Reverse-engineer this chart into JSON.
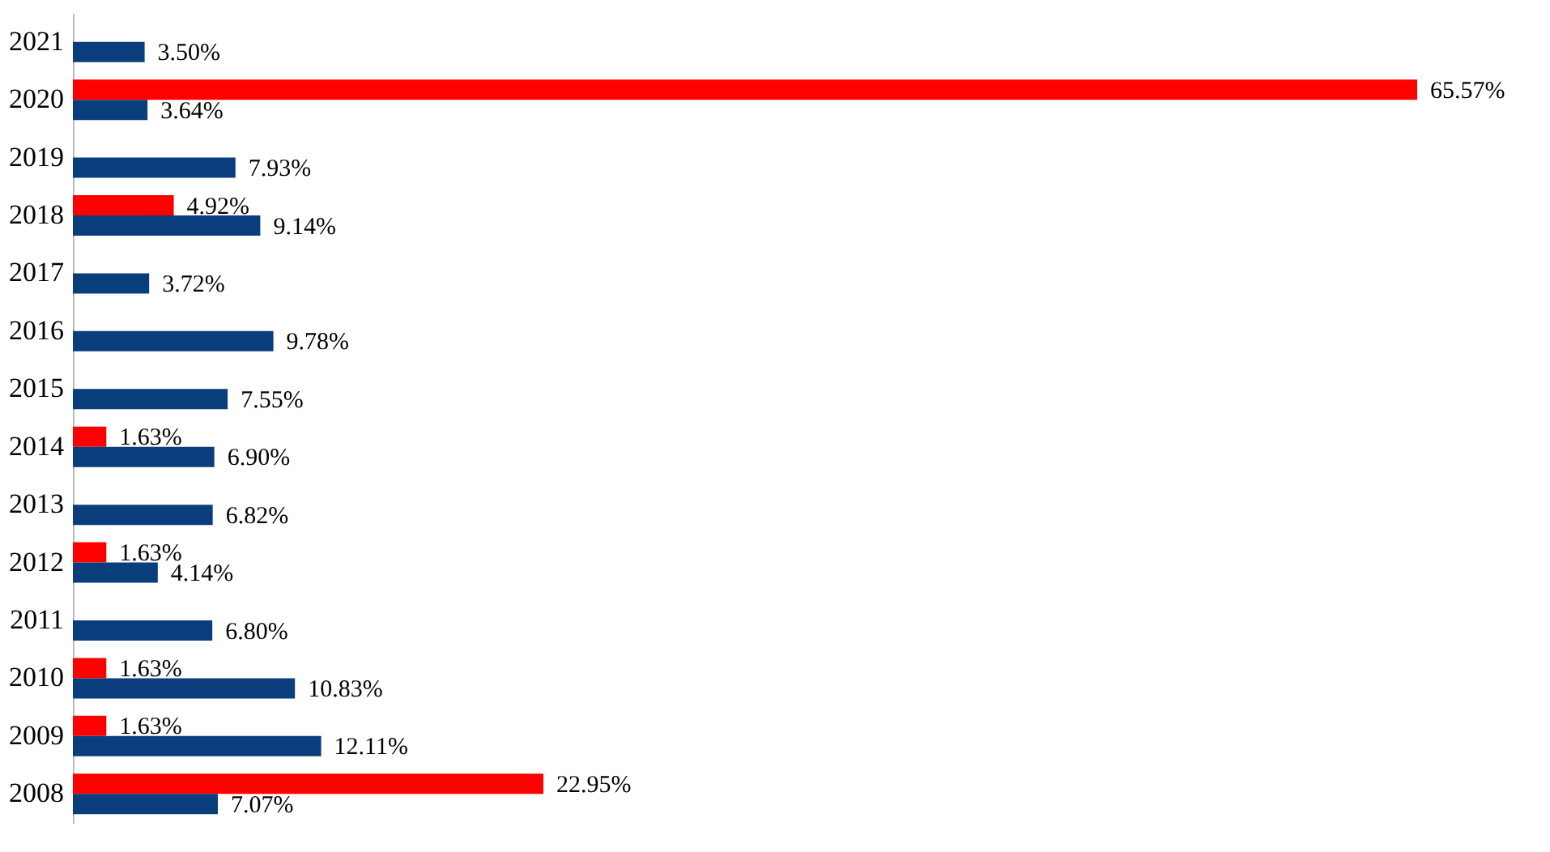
{
  "chart_data": {
    "type": "bar",
    "orientation": "horizontal",
    "categories": [
      "2021",
      "2020",
      "2019",
      "2018",
      "2017",
      "2016",
      "2015",
      "2014",
      "2013",
      "2012",
      "2011",
      "2010",
      "2009",
      "2008"
    ],
    "series": [
      {
        "color": "#ff0000",
        "values": [
          null,
          65.57,
          null,
          4.92,
          null,
          null,
          null,
          1.63,
          null,
          1.63,
          null,
          1.63,
          1.63,
          22.95
        ],
        "value_labels": [
          null,
          "65.57%",
          null,
          "4.92%",
          null,
          null,
          null,
          "1.63%",
          null,
          "1.63%",
          null,
          "1.63%",
          "1.63%",
          "22.95%"
        ]
      },
      {
        "color": "#0a3d7c",
        "values": [
          3.5,
          3.64,
          7.93,
          9.14,
          3.72,
          9.78,
          7.55,
          6.9,
          6.82,
          4.14,
          6.8,
          10.83,
          12.11,
          7.07
        ],
        "value_labels": [
          "3.50%",
          "3.64%",
          "7.93%",
          "9.14%",
          "3.72%",
          "9.78%",
          "7.55%",
          "6.90%",
          "6.82%",
          "4.14%",
          "6.80%",
          "10.83%",
          "12.11%",
          "7.07%"
        ]
      }
    ],
    "legend": false
  }
}
